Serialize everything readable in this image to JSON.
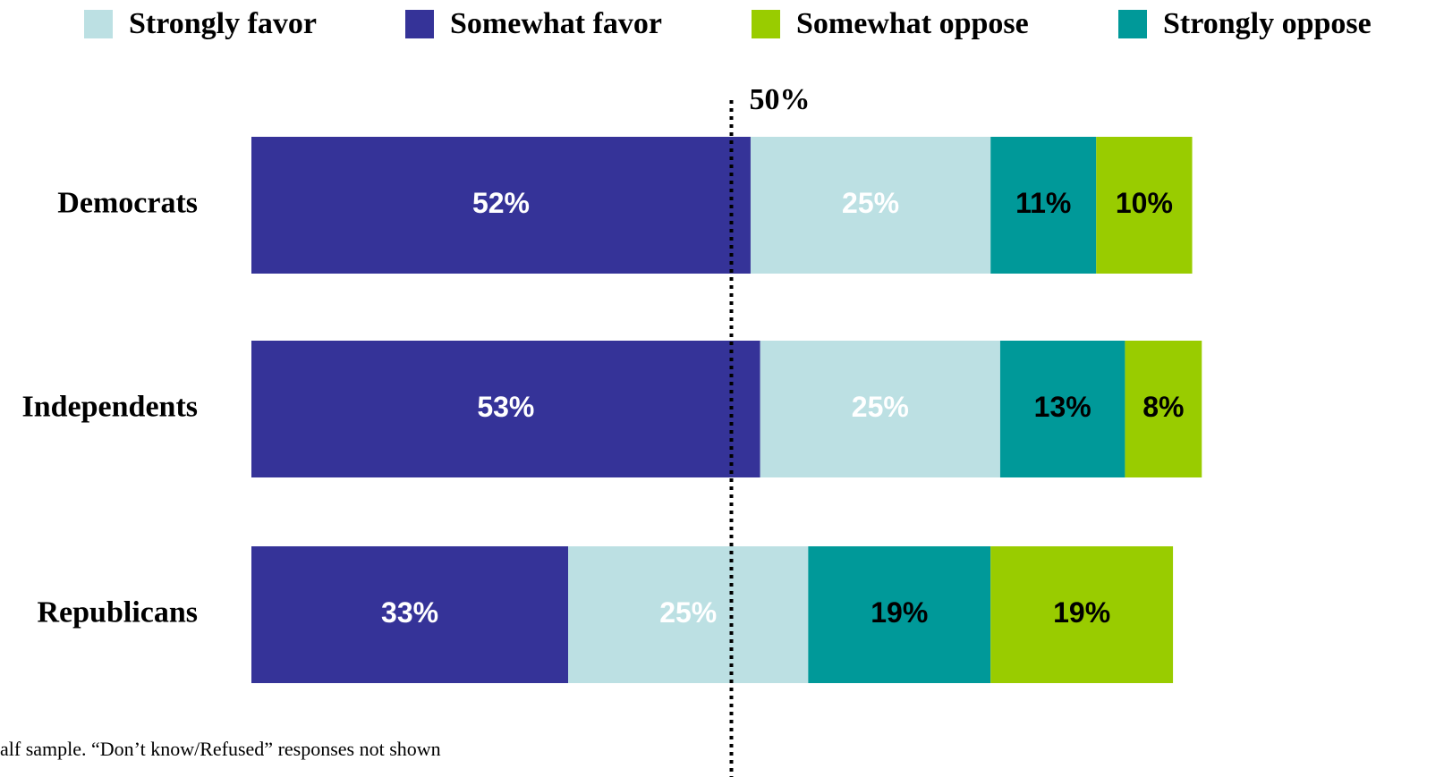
{
  "chart_data": {
    "type": "stacked_barh",
    "categories": [
      "Democrats",
      "Independents",
      "Republicans"
    ],
    "series": [
      {
        "name": "Strongly favor",
        "color": "#bce0e3",
        "label_color": "#ffffff",
        "values": [
          25,
          25,
          25
        ],
        "value_labels": [
          "25%",
          "25%",
          "25%"
        ]
      },
      {
        "name": "Somewhat favor",
        "color": "#353398",
        "label_color": "#ffffff",
        "values": [
          52,
          53,
          33
        ],
        "value_labels": [
          "52%",
          "53%",
          "33%"
        ]
      },
      {
        "name": "Somewhat oppose",
        "color": "#99cc00",
        "label_color": "#000000",
        "values": [
          10,
          8,
          19
        ],
        "value_labels": [
          "10%",
          "8%",
          "19%"
        ]
      },
      {
        "name": "Strongly oppose",
        "color": "#009999",
        "label_color": "#000000",
        "values": [
          11,
          13,
          19
        ],
        "value_labels": [
          "11%",
          "13%",
          "19%"
        ]
      }
    ],
    "stack_order": [
      1,
      0,
      3,
      2
    ],
    "xlim": [
      0,
      100
    ],
    "reference_line": {
      "value": 50,
      "label": "50%"
    },
    "note": "alf sample. “Don’t know/Refused” responses not shown"
  }
}
